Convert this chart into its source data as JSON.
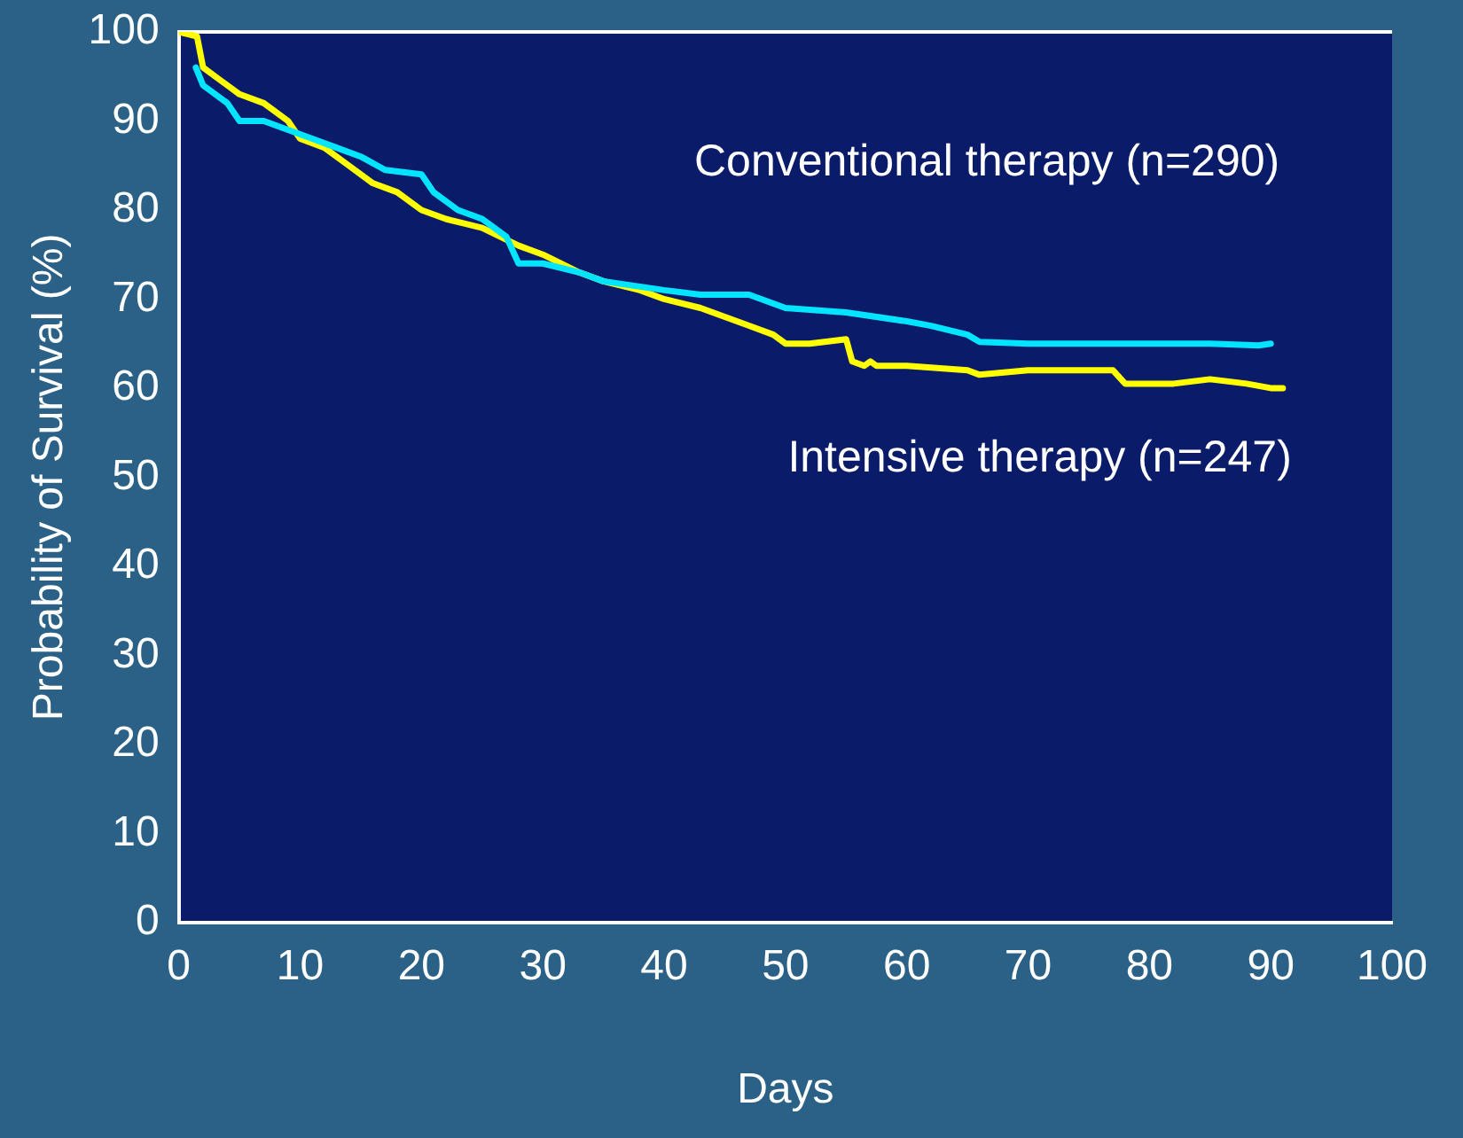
{
  "chart_data": {
    "type": "line",
    "xlabel": "Days",
    "ylabel": "Probability of Survival (%)",
    "xlim": [
      0,
      100
    ],
    "xticks": [
      0,
      10,
      20,
      30,
      40,
      50,
      60,
      70,
      80,
      90,
      100
    ],
    "ylim": [
      0,
      100
    ],
    "yticks": [
      0,
      10,
      20,
      30,
      40,
      50,
      60,
      70,
      80,
      90,
      100
    ],
    "grid": false,
    "legend": false,
    "marker": "none",
    "line_style": "solid",
    "series": [
      {
        "name": "Conventional therapy (n=290)",
        "color": "#00e5ff",
        "x": [
          1.4,
          2,
          4,
          5,
          7,
          9,
          11,
          13,
          15,
          17,
          20,
          21,
          23,
          25,
          27,
          28,
          30,
          33,
          35,
          40,
          43,
          47,
          50,
          55,
          60,
          62,
          65,
          66,
          70,
          80,
          85,
          89,
          90
        ],
        "values": [
          96,
          94,
          92,
          90,
          90,
          89,
          88,
          87,
          86,
          84.5,
          84,
          82,
          80,
          79,
          77,
          74,
          74,
          73,
          72,
          71,
          70.5,
          70.5,
          69,
          68.5,
          67.5,
          67,
          66,
          65.2,
          65,
          65,
          65,
          64.8,
          65
        ]
      },
      {
        "name": "Intensive therapy (n=247)",
        "color": "#ffff00",
        "x": [
          0,
          1.5,
          2,
          3,
          5,
          7,
          9,
          10,
          12,
          14,
          16,
          18,
          20,
          22,
          25,
          28,
          30,
          33,
          35,
          38,
          40,
          43,
          45,
          47,
          49,
          50,
          52,
          55,
          55.5,
          56.5,
          57,
          57.5,
          60,
          65,
          66,
          70,
          77,
          78,
          82,
          85,
          88,
          90,
          91
        ],
        "values": [
          100,
          99.5,
          96,
          95,
          93,
          92,
          90,
          88,
          87,
          85,
          83,
          82,
          80,
          79,
          78,
          76,
          75,
          73,
          72,
          71,
          70,
          69,
          68,
          67,
          66,
          65,
          65,
          65.5,
          63,
          62.5,
          63,
          62.5,
          62.5,
          62,
          61.5,
          62,
          62,
          60.5,
          60.5,
          61,
          60.5,
          60,
          60
        ]
      }
    ]
  }
}
